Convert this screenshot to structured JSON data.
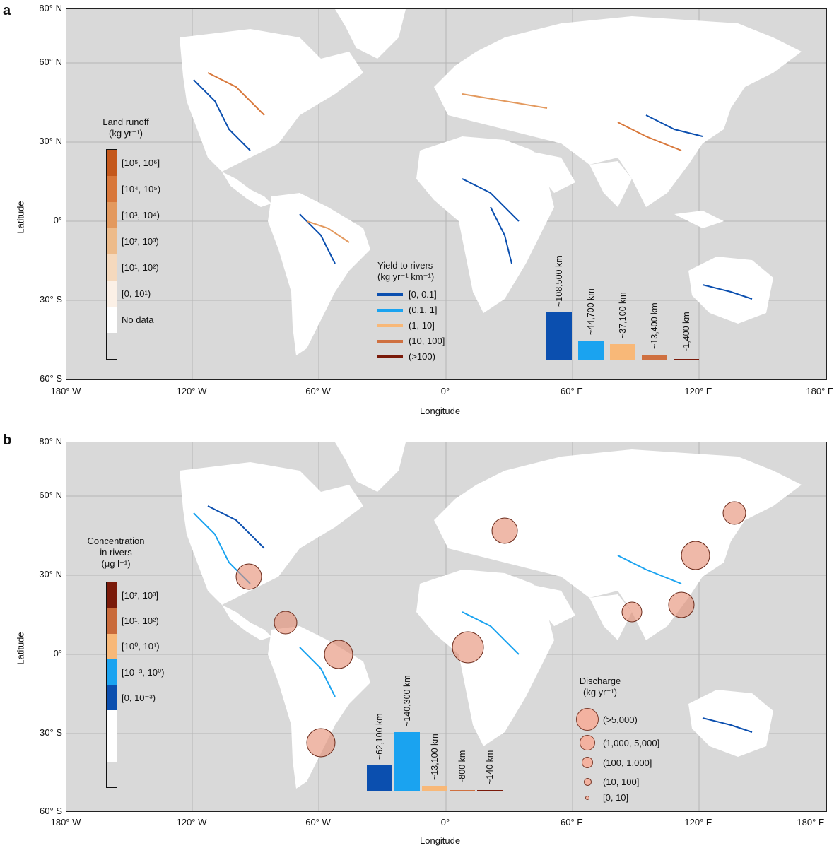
{
  "panel_a": {
    "letter": "a",
    "y_axis_label": "Latitude",
    "x_axis_label": "Longitude",
    "lat_ticks": [
      "80° N",
      "60° N",
      "30° N",
      "0°",
      "30° S",
      "60° S"
    ],
    "lon_ticks": [
      "180° W",
      "120° W",
      "60° W",
      "0°",
      "60° E",
      "120° E",
      "180° E"
    ],
    "colorbar": {
      "title_line1": "Land runoff",
      "title_line2": "(kg yr⁻¹)",
      "classes": [
        "[10⁵, 10⁶]",
        "[10⁴, 10⁵)",
        "[10³, 10⁴)",
        "[10², 10³)",
        "[10¹, 10²)",
        "[0, 10¹)",
        "No data"
      ],
      "colors": [
        "#c4581c",
        "#d8773a",
        "#e3995e",
        "#edbb8a",
        "#f5d9bd",
        "#fbf0e6",
        "#ffffff",
        "#d9d9d9"
      ]
    },
    "yield_legend": {
      "title_line1": "Yield to rivers",
      "title_line2": "(kg yr⁻¹ km⁻¹)",
      "items": [
        {
          "label": "[0, 0.1]",
          "color": "#0b4faf"
        },
        {
          "label": "(0.1, 1]",
          "color": "#1aa3f0"
        },
        {
          "label": "(1, 10]",
          "color": "#f8b878"
        },
        {
          "label": "(10, 100]",
          "color": "#cf7040"
        },
        {
          "label": "(>100)",
          "color": "#7a1a0a"
        }
      ]
    },
    "bars": [
      {
        "label": "~108,500 km",
        "value": 108500,
        "color": "#0b4faf"
      },
      {
        "label": "~44,700 km",
        "value": 44700,
        "color": "#1aa3f0"
      },
      {
        "label": "~37,100 km",
        "value": 37100,
        "color": "#f8b878"
      },
      {
        "label": "~13,400 km",
        "value": 13400,
        "color": "#cf7040"
      },
      {
        "label": "~1,400 km",
        "value": 1400,
        "color": "#7a1a0a"
      }
    ]
  },
  "panel_b": {
    "letter": "b",
    "y_axis_label": "Latitude",
    "x_axis_label": "Longitude",
    "lat_ticks": [
      "80° N",
      "60° N",
      "30° N",
      "0°",
      "30° S",
      "60° S"
    ],
    "lon_ticks": [
      "180° W",
      "120° W",
      "60° W",
      "0°",
      "60° E",
      "120° E",
      "180° E"
    ],
    "colorbar": {
      "title_line1": "Concentration",
      "title_line2": "in rivers",
      "title_line3": "(μg l⁻¹)",
      "classes": [
        "[10², 10³]",
        "[10¹, 10²)",
        "[10⁰, 10¹)",
        "[10⁻³, 10⁰)",
        "[0, 10⁻³)"
      ],
      "colors": [
        "#7a1a0a",
        "#c96a3a",
        "#f8b878",
        "#1aa3f0",
        "#0b4faf",
        "#ffffff",
        "#ffffff",
        "#d9d9d9"
      ]
    },
    "bars": [
      {
        "label": "~62,100 km",
        "value": 62100,
        "color": "#0b4faf"
      },
      {
        "label": "~140,300 km",
        "value": 140300,
        "color": "#1aa3f0"
      },
      {
        "label": "~13,100 km",
        "value": 13100,
        "color": "#f8b878"
      },
      {
        "label": "~800 km",
        "value": 800,
        "color": "#cf7040"
      },
      {
        "label": "~140 km",
        "value": 140,
        "color": "#7a1a0a"
      }
    ],
    "discharge_legend": {
      "title_line1": "Discharge",
      "title_line2": "(kg yr⁻¹)",
      "items": [
        "(>5,000)",
        "(1,000, 5,000]",
        "(100, 1,000]",
        "(10, 100]",
        "[0, 10]"
      ]
    }
  }
}
